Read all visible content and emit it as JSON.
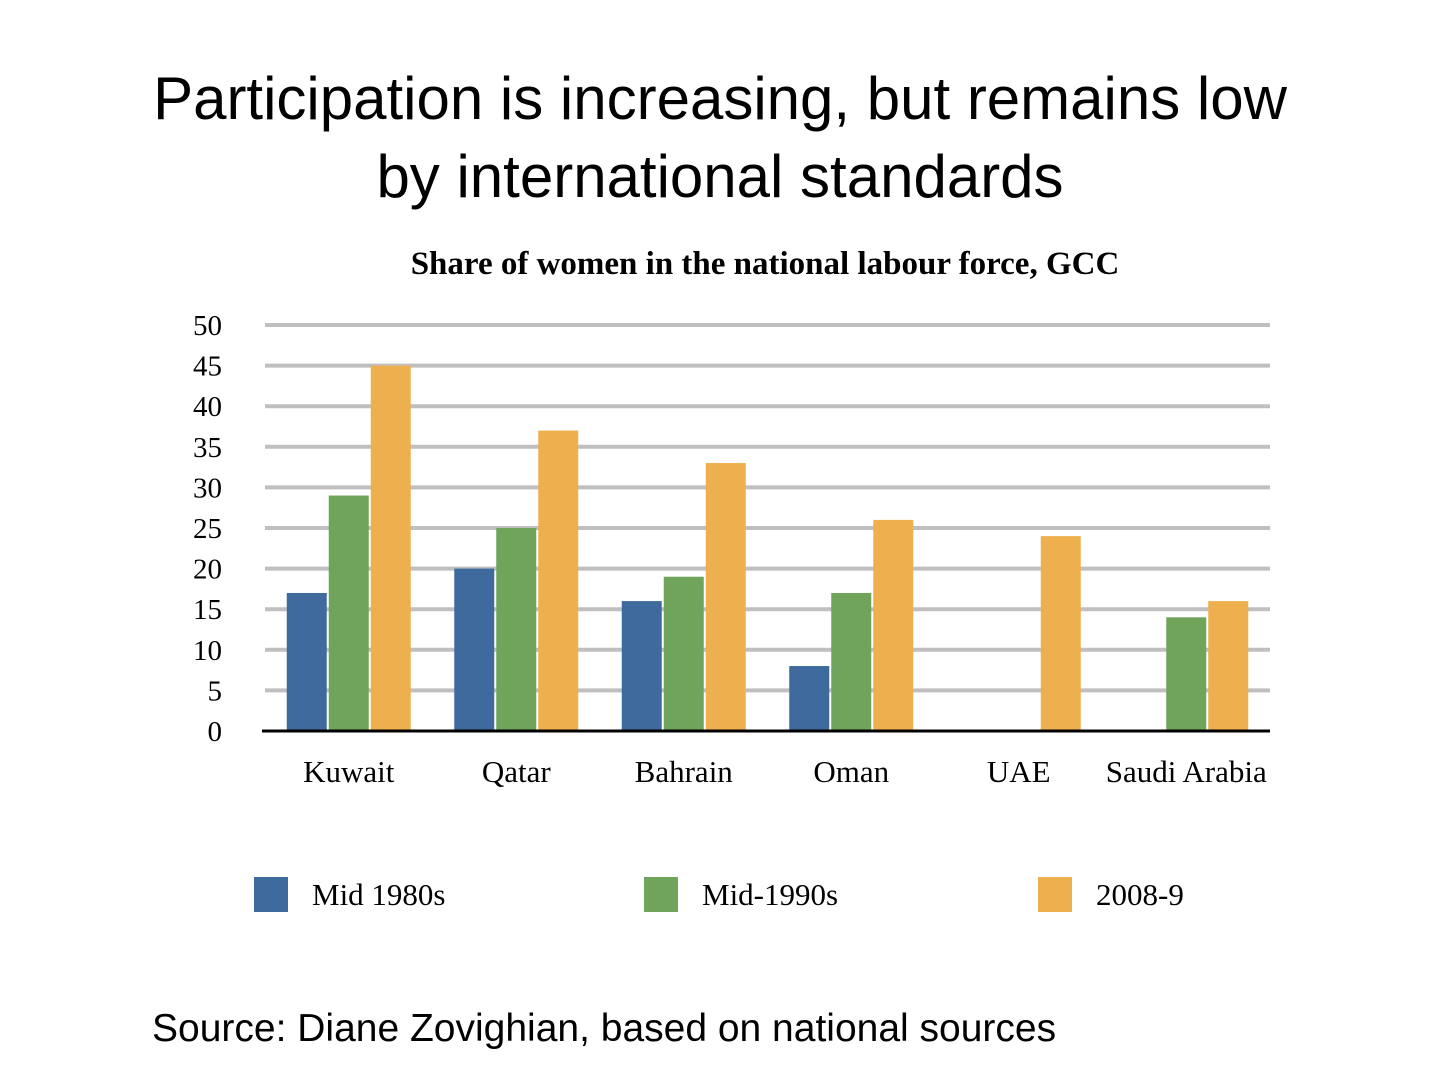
{
  "slide": {
    "title_line1": "Participation is increasing, but remains low",
    "title_line2": "by international standards",
    "source": "Source: Diane Zovighian, based on national sources"
  },
  "chart_data": {
    "type": "bar",
    "title": "Share of women in the national labour force, GCC",
    "xlabel": "",
    "ylabel": "",
    "ylim": [
      0,
      50
    ],
    "yticks": [
      0,
      5,
      10,
      15,
      20,
      25,
      30,
      35,
      40,
      45,
      50
    ],
    "grid": true,
    "legend_position": "bottom",
    "categories": [
      "Kuwait",
      "Qatar",
      "Bahrain",
      "Oman",
      "UAE",
      "Saudi Arabia"
    ],
    "series": [
      {
        "name": "Mid 1980s",
        "color": "#3E6A9D",
        "values": [
          17,
          20,
          16,
          8,
          null,
          null
        ]
      },
      {
        "name": "Mid-1990s",
        "color": "#6FA45A",
        "values": [
          29,
          25,
          19,
          17,
          null,
          14
        ]
      },
      {
        "name": "2008-9",
        "color": "#EEB04F",
        "values": [
          45,
          37,
          33,
          26,
          24,
          16
        ]
      }
    ]
  }
}
